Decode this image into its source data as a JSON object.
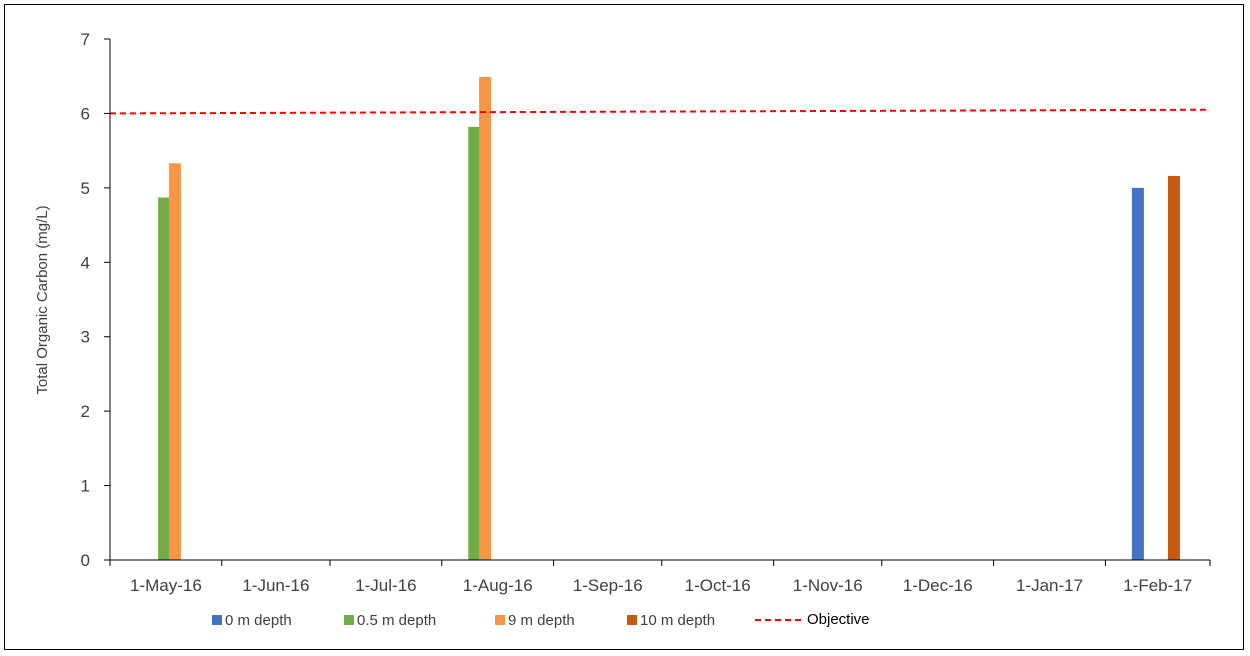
{
  "chart_data": {
    "type": "bar",
    "ylabel": "Total Organic Carbon (mg/L)",
    "xlabel": "",
    "ylim": [
      0,
      7
    ],
    "yticks": [
      "0",
      "1",
      "2",
      "3",
      "4",
      "5",
      "6",
      "7"
    ],
    "x_axis_type": "date",
    "xlim": [
      "2016-05-01",
      "2017-03-02"
    ],
    "xticks": [
      {
        "date": "2016-05-01",
        "label": "1-May-16"
      },
      {
        "date": "2016-06-01",
        "label": "1-Jun-16"
      },
      {
        "date": "2016-07-01",
        "label": "1-Jul-16"
      },
      {
        "date": "2016-08-01",
        "label": "1-Aug-16"
      },
      {
        "date": "2016-09-01",
        "label": "1-Sep-16"
      },
      {
        "date": "2016-10-01",
        "label": "1-Oct-16"
      },
      {
        "date": "2016-11-01",
        "label": "1-Nov-16"
      },
      {
        "date": "2016-12-01",
        "label": "1-Dec-16"
      },
      {
        "date": "2017-01-01",
        "label": "1-Jan-17"
      },
      {
        "date": "2017-02-01",
        "label": "1-Feb-17"
      }
    ],
    "series": [
      {
        "name": "0 m depth",
        "color": "#4472C4",
        "points": [
          {
            "date": "2017-02-10",
            "value": 5.0
          }
        ]
      },
      {
        "name": "0.5 m depth",
        "color": "#70AD47",
        "points": [
          {
            "date": "2016-05-16",
            "value": 4.87
          },
          {
            "date": "2016-08-10",
            "value": 5.82
          }
        ]
      },
      {
        "name": "9 m depth",
        "color": "#F79646",
        "points": [
          {
            "date": "2016-05-19",
            "value": 5.33
          },
          {
            "date": "2016-08-13",
            "value": 6.49
          }
        ]
      },
      {
        "name": "10 m depth",
        "color": "#C55A11",
        "points": [
          {
            "date": "2017-02-20",
            "value": 5.16
          }
        ]
      }
    ],
    "reference_line": {
      "name": "Objective",
      "color": "#FF0000",
      "style": "dashed",
      "start": 6.0,
      "end": 6.05
    },
    "legend_position": "bottom",
    "grid": false
  }
}
